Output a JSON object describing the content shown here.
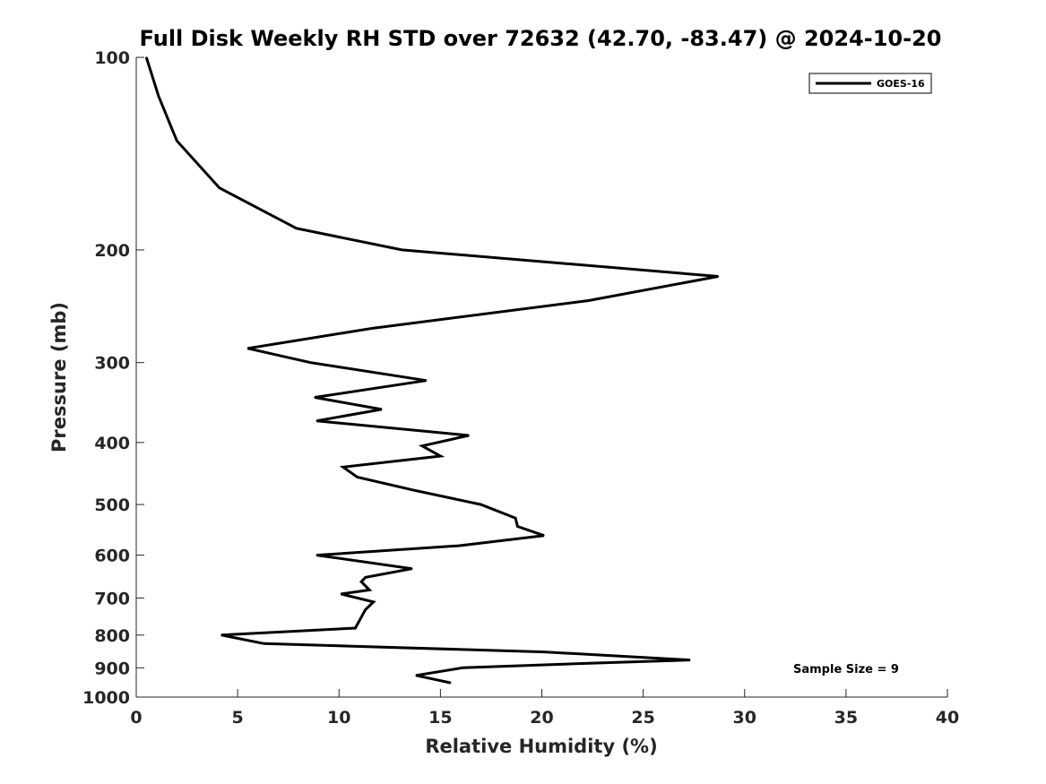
{
  "chart_data": {
    "type": "line",
    "title": "Full Disk Weekly RH STD over 72632 (42.70, -83.47) @ 2024-10-20",
    "xlabel": "Relative Humidity (%)",
    "ylabel": "Pressure (mb)",
    "xlim": [
      0,
      40
    ],
    "ylim": [
      1000,
      100
    ],
    "yscale": "log",
    "x_ticks": [
      0,
      5,
      10,
      15,
      20,
      25,
      30,
      35,
      40
    ],
    "y_ticks": [
      100,
      200,
      300,
      400,
      500,
      600,
      700,
      800,
      900,
      1000
    ],
    "legend_position": "top-right",
    "annotation": "Sample Size = 9",
    "series": [
      {
        "name": "GOES-16",
        "color": "#000000",
        "points": [
          [
            0.5,
            100
          ],
          [
            1.1,
            115
          ],
          [
            2.0,
            135
          ],
          [
            4.1,
            160
          ],
          [
            7.9,
            185
          ],
          [
            13.1,
            200
          ],
          [
            28.7,
            220
          ],
          [
            22.3,
            240
          ],
          [
            11.7,
            265
          ],
          [
            5.5,
            285
          ],
          [
            8.6,
            300
          ],
          [
            14.3,
            320
          ],
          [
            8.8,
            340
          ],
          [
            12.1,
            355
          ],
          [
            8.9,
            370
          ],
          [
            16.4,
            390
          ],
          [
            14.1,
            405
          ],
          [
            15.0,
            420
          ],
          [
            10.2,
            437
          ],
          [
            10.9,
            453
          ],
          [
            13.7,
            475
          ],
          [
            17.0,
            500
          ],
          [
            18.7,
            525
          ],
          [
            18.8,
            541
          ],
          [
            20.1,
            559
          ],
          [
            15.9,
            580
          ],
          [
            8.9,
            600
          ],
          [
            13.6,
            630
          ],
          [
            11.3,
            650
          ],
          [
            11.1,
            660
          ],
          [
            11.5,
            680
          ],
          [
            10.1,
            690
          ],
          [
            11.7,
            710
          ],
          [
            11.3,
            730
          ],
          [
            11.1,
            750
          ],
          [
            10.8,
            780
          ],
          [
            4.2,
            800
          ],
          [
            6.3,
            825
          ],
          [
            20.1,
            850
          ],
          [
            27.3,
            875
          ],
          [
            22.5,
            885
          ],
          [
            16.1,
            900
          ],
          [
            13.8,
            925
          ],
          [
            15.5,
            950
          ]
        ]
      }
    ]
  }
}
